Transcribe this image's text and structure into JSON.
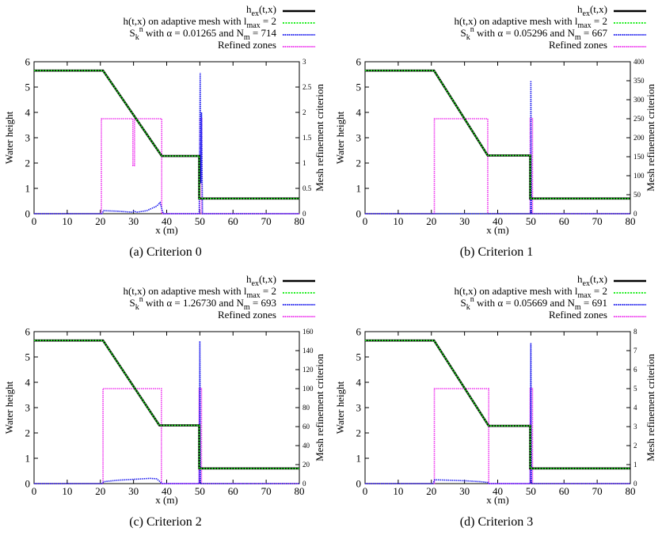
{
  "chart_data": [
    {
      "type": "line",
      "caption": "(a)  Criterion 0",
      "legend": {
        "exact": "h",
        "exact_sub": "ex",
        "exact_args": "(t,x)",
        "mesh_pre": "h(t,x) on adaptive mesh with l",
        "mesh_sub": "max",
        "mesh_post": " = 2",
        "crit_pre": "S",
        "crit_sub": "k",
        "crit_sup": "n",
        "crit_post": " with α =  0.01265 and N",
        "crit_sub2": "m",
        "crit_post2": " = 714",
        "zones": "Refined zones",
        "placement": "top"
      },
      "xlabel": "x (m)",
      "ylabel": "Water height",
      "y2label": "Mesh refinement criterion",
      "xlim": [
        0,
        80
      ],
      "ylim": [
        0,
        6
      ],
      "y2lim": [
        0,
        3
      ],
      "xticks": [
        0,
        10,
        20,
        30,
        40,
        50,
        60,
        70,
        80
      ],
      "yticks": [
        0,
        1,
        2,
        3,
        4,
        5,
        6
      ],
      "y2ticks": [
        0,
        0.5,
        1,
        1.5,
        2,
        2.5,
        3
      ],
      "y2ticklabels": [
        "0",
        "0.5",
        "1",
        "1.5",
        "2",
        "2.5",
        "3"
      ],
      "series": [
        {
          "name": "exact",
          "axis": "y",
          "color": "#000000",
          "dash": "",
          "x": [
            0,
            20.8,
            38.5,
            49.8,
            49.8,
            80
          ],
          "y": [
            5.65,
            5.65,
            2.28,
            2.28,
            0.6,
            0.6
          ]
        },
        {
          "name": "adaptive",
          "axis": "y",
          "color": "#22ee22",
          "dash": "2,1.5",
          "x": [
            0,
            20.8,
            38.5,
            49.8,
            49.8,
            80
          ],
          "y": [
            5.65,
            5.65,
            2.28,
            2.28,
            0.6,
            0.6
          ]
        },
        {
          "name": "criterion",
          "axis": "y2",
          "color": "#1a1aee",
          "dash": "1.5,1",
          "x": [
            0,
            20.5,
            21,
            25,
            29.5,
            30,
            31,
            34,
            37,
            38,
            38.5,
            39,
            49.8,
            50.1,
            50.3,
            50.5,
            50.8,
            80
          ],
          "y": [
            0,
            0,
            0.06,
            0.05,
            0.03,
            0.05,
            0.03,
            0.06,
            0.15,
            0.22,
            0.1,
            0,
            0,
            2.78,
            0.6,
            2.0,
            0,
            0
          ]
        },
        {
          "name": "zones",
          "axis": "y",
          "color": "#ee33ee",
          "dash": "1.5,1",
          "x": [
            0,
            20.3,
            20.3,
            29.8,
            29.8,
            30.3,
            30.3,
            30.6,
            30.6,
            38.5,
            38.5,
            50.0,
            50.0,
            50.6,
            50.6,
            80
          ],
          "y": [
            0,
            0,
            3.75,
            3.75,
            1.9,
            1.9,
            3.75,
            3.75,
            3.75,
            3.75,
            0,
            0,
            3.75,
            3.75,
            0,
            0
          ]
        }
      ]
    },
    {
      "type": "line",
      "caption": "(b)  Criterion 1",
      "legend": {
        "exact": "h",
        "exact_sub": "ex",
        "exact_args": "(t,x)",
        "mesh_pre": "h(t,x) on adaptive mesh with l",
        "mesh_sub": "max",
        "mesh_post": " = 2",
        "crit_pre": "S",
        "crit_sub": "k",
        "crit_sup": "n",
        "crit_post": " with α =  0.05296 and N",
        "crit_sub2": "m",
        "crit_post2": " = 667",
        "zones": "Refined zones",
        "placement": "top"
      },
      "xlabel": "x (m)",
      "ylabel": "Water height",
      "y2label": "Mesh refinement criterion",
      "xlim": [
        0,
        80
      ],
      "ylim": [
        0,
        6
      ],
      "y2lim": [
        0,
        400
      ],
      "xticks": [
        0,
        10,
        20,
        30,
        40,
        50,
        60,
        70,
        80
      ],
      "yticks": [
        0,
        1,
        2,
        3,
        4,
        5,
        6
      ],
      "y2ticks": [
        0,
        50,
        100,
        150,
        200,
        250,
        300,
        350,
        400
      ],
      "y2ticklabels": [
        "0",
        "50",
        "100",
        "150",
        "200",
        "250",
        "300",
        "350",
        "400"
      ],
      "series": [
        {
          "name": "exact",
          "axis": "y",
          "color": "#000000",
          "dash": "",
          "x": [
            0,
            20.8,
            37.0,
            49.8,
            49.8,
            80
          ],
          "y": [
            5.65,
            5.65,
            2.3,
            2.3,
            0.6,
            0.6
          ]
        },
        {
          "name": "adaptive",
          "axis": "y",
          "color": "#22ee22",
          "dash": "2,1.5",
          "x": [
            0,
            20.8,
            37.0,
            49.8,
            49.8,
            80
          ],
          "y": [
            5.65,
            5.65,
            2.3,
            2.3,
            0.6,
            0.6
          ]
        },
        {
          "name": "criterion",
          "axis": "y2",
          "color": "#1a1aee",
          "dash": "1.5,1",
          "x": [
            0,
            49.9,
            50.0,
            50.2,
            80
          ],
          "y": [
            0,
            0,
            350,
            0,
            0
          ]
        },
        {
          "name": "zones",
          "axis": "y",
          "color": "#ee33ee",
          "dash": "1.5,1",
          "x": [
            0,
            20.9,
            20.9,
            37.0,
            37.0,
            49.8,
            49.8,
            50.5,
            50.5,
            80
          ],
          "y": [
            0,
            0,
            3.75,
            3.75,
            0,
            0,
            3.75,
            3.75,
            0,
            0
          ]
        }
      ]
    },
    {
      "type": "line",
      "caption": "(c)  Criterion 2",
      "legend": {
        "exact": "h",
        "exact_sub": "ex",
        "exact_args": "(t,x)",
        "mesh_pre": "h(t,x) on adaptive mesh with l",
        "mesh_sub": "max",
        "mesh_post": " = 2",
        "crit_pre": "S",
        "crit_sub": "k",
        "crit_sup": "n",
        "crit_post": " with α =  1.26730 and N",
        "crit_sub2": "m",
        "crit_post2": " = 693",
        "zones": "Refined zones",
        "placement": "top"
      },
      "xlabel": "x (m)",
      "ylabel": "Water height",
      "y2label": "Mesh refinement criterion",
      "xlim": [
        0,
        80
      ],
      "ylim": [
        0,
        6
      ],
      "y2lim": [
        0,
        160
      ],
      "xticks": [
        0,
        10,
        20,
        30,
        40,
        50,
        60,
        70,
        80
      ],
      "yticks": [
        0,
        1,
        2,
        3,
        4,
        5,
        6
      ],
      "y2ticks": [
        0,
        20,
        40,
        60,
        80,
        100,
        120,
        140,
        160
      ],
      "y2ticklabels": [
        "0",
        "20",
        "40",
        "60",
        "80",
        "100",
        "120",
        "140",
        "160"
      ],
      "series": [
        {
          "name": "exact",
          "axis": "y",
          "color": "#000000",
          "dash": "",
          "x": [
            0,
            20.8,
            37.8,
            49.8,
            49.8,
            80
          ],
          "y": [
            5.65,
            5.65,
            2.3,
            2.3,
            0.6,
            0.6
          ]
        },
        {
          "name": "adaptive",
          "axis": "y",
          "color": "#22ee22",
          "dash": "2,1.5",
          "x": [
            0,
            20.8,
            37.8,
            49.8,
            49.8,
            80
          ],
          "y": [
            5.65,
            5.65,
            2.3,
            2.3,
            0.6,
            0.6
          ]
        },
        {
          "name": "criterion",
          "axis": "y2",
          "color": "#1a1aee",
          "dash": "1.5,1",
          "x": [
            0,
            20.5,
            21,
            25,
            30,
            35,
            37,
            38,
            38.5,
            49.8,
            50.0,
            50.2,
            80
          ],
          "y": [
            0,
            0,
            2,
            3.5,
            4.5,
            5.5,
            5.0,
            2.0,
            0,
            0,
            150,
            0,
            0
          ]
        },
        {
          "name": "zones",
          "axis": "y",
          "color": "#ee33ee",
          "dash": "1.5,1",
          "x": [
            0,
            20.8,
            20.8,
            38.4,
            38.4,
            49.8,
            49.8,
            50.5,
            50.5,
            80
          ],
          "y": [
            0,
            0,
            3.75,
            3.75,
            0,
            0,
            3.75,
            3.75,
            0,
            0
          ]
        }
      ]
    },
    {
      "type": "line",
      "caption": "(d)  Criterion 3",
      "legend": {
        "exact": "h",
        "exact_sub": "ex",
        "exact_args": "(t,x)",
        "mesh_pre": "h(t,x) on adaptive mesh with l",
        "mesh_sub": "max",
        "mesh_post": " = 2",
        "crit_pre": "S",
        "crit_sub": "k",
        "crit_sup": "n",
        "crit_post": " with α =  0.05669 and N",
        "crit_sub2": "m",
        "crit_post2": " = 691",
        "zones": "Refined zones",
        "placement": "top"
      },
      "xlabel": "x (m)",
      "ylabel": "Water height",
      "y2label": "Mesh refinement criterion",
      "xlim": [
        0,
        80
      ],
      "ylim": [
        0,
        6
      ],
      "y2lim": [
        0,
        8
      ],
      "xticks": [
        0,
        10,
        20,
        30,
        40,
        50,
        60,
        70,
        80
      ],
      "yticks": [
        0,
        1,
        2,
        3,
        4,
        5,
        6
      ],
      "y2ticks": [
        0,
        1,
        2,
        3,
        4,
        5,
        6,
        7,
        8
      ],
      "y2ticklabels": [
        "0",
        "1",
        "2",
        "3",
        "4",
        "5",
        "6",
        "7",
        "8"
      ],
      "series": [
        {
          "name": "exact",
          "axis": "y",
          "color": "#000000",
          "dash": "",
          "x": [
            0,
            20.8,
            37.3,
            49.8,
            49.8,
            80
          ],
          "y": [
            5.65,
            5.65,
            2.28,
            2.28,
            0.6,
            0.6
          ]
        },
        {
          "name": "adaptive",
          "axis": "y",
          "color": "#22ee22",
          "dash": "2,1.5",
          "x": [
            0,
            20.8,
            37.3,
            49.8,
            49.8,
            80
          ],
          "y": [
            5.65,
            5.65,
            2.28,
            2.28,
            0.6,
            0.6
          ]
        },
        {
          "name": "criterion",
          "axis": "y2",
          "color": "#1a1aee",
          "dash": "1.5,1",
          "x": [
            0,
            20.5,
            21,
            25,
            30,
            35,
            37,
            37.5,
            49.8,
            50.0,
            50.2,
            80
          ],
          "y": [
            0,
            0,
            0.2,
            0.18,
            0.15,
            0.1,
            0.06,
            0,
            0,
            7.4,
            0,
            0
          ]
        },
        {
          "name": "zones",
          "axis": "y",
          "color": "#ee33ee",
          "dash": "1.5,1",
          "x": [
            0,
            20.9,
            20.9,
            37.3,
            37.3,
            49.8,
            49.8,
            50.5,
            50.5,
            80
          ],
          "y": [
            0,
            0,
            3.75,
            3.75,
            0,
            0,
            3.75,
            3.75,
            0,
            0
          ]
        }
      ]
    }
  ]
}
